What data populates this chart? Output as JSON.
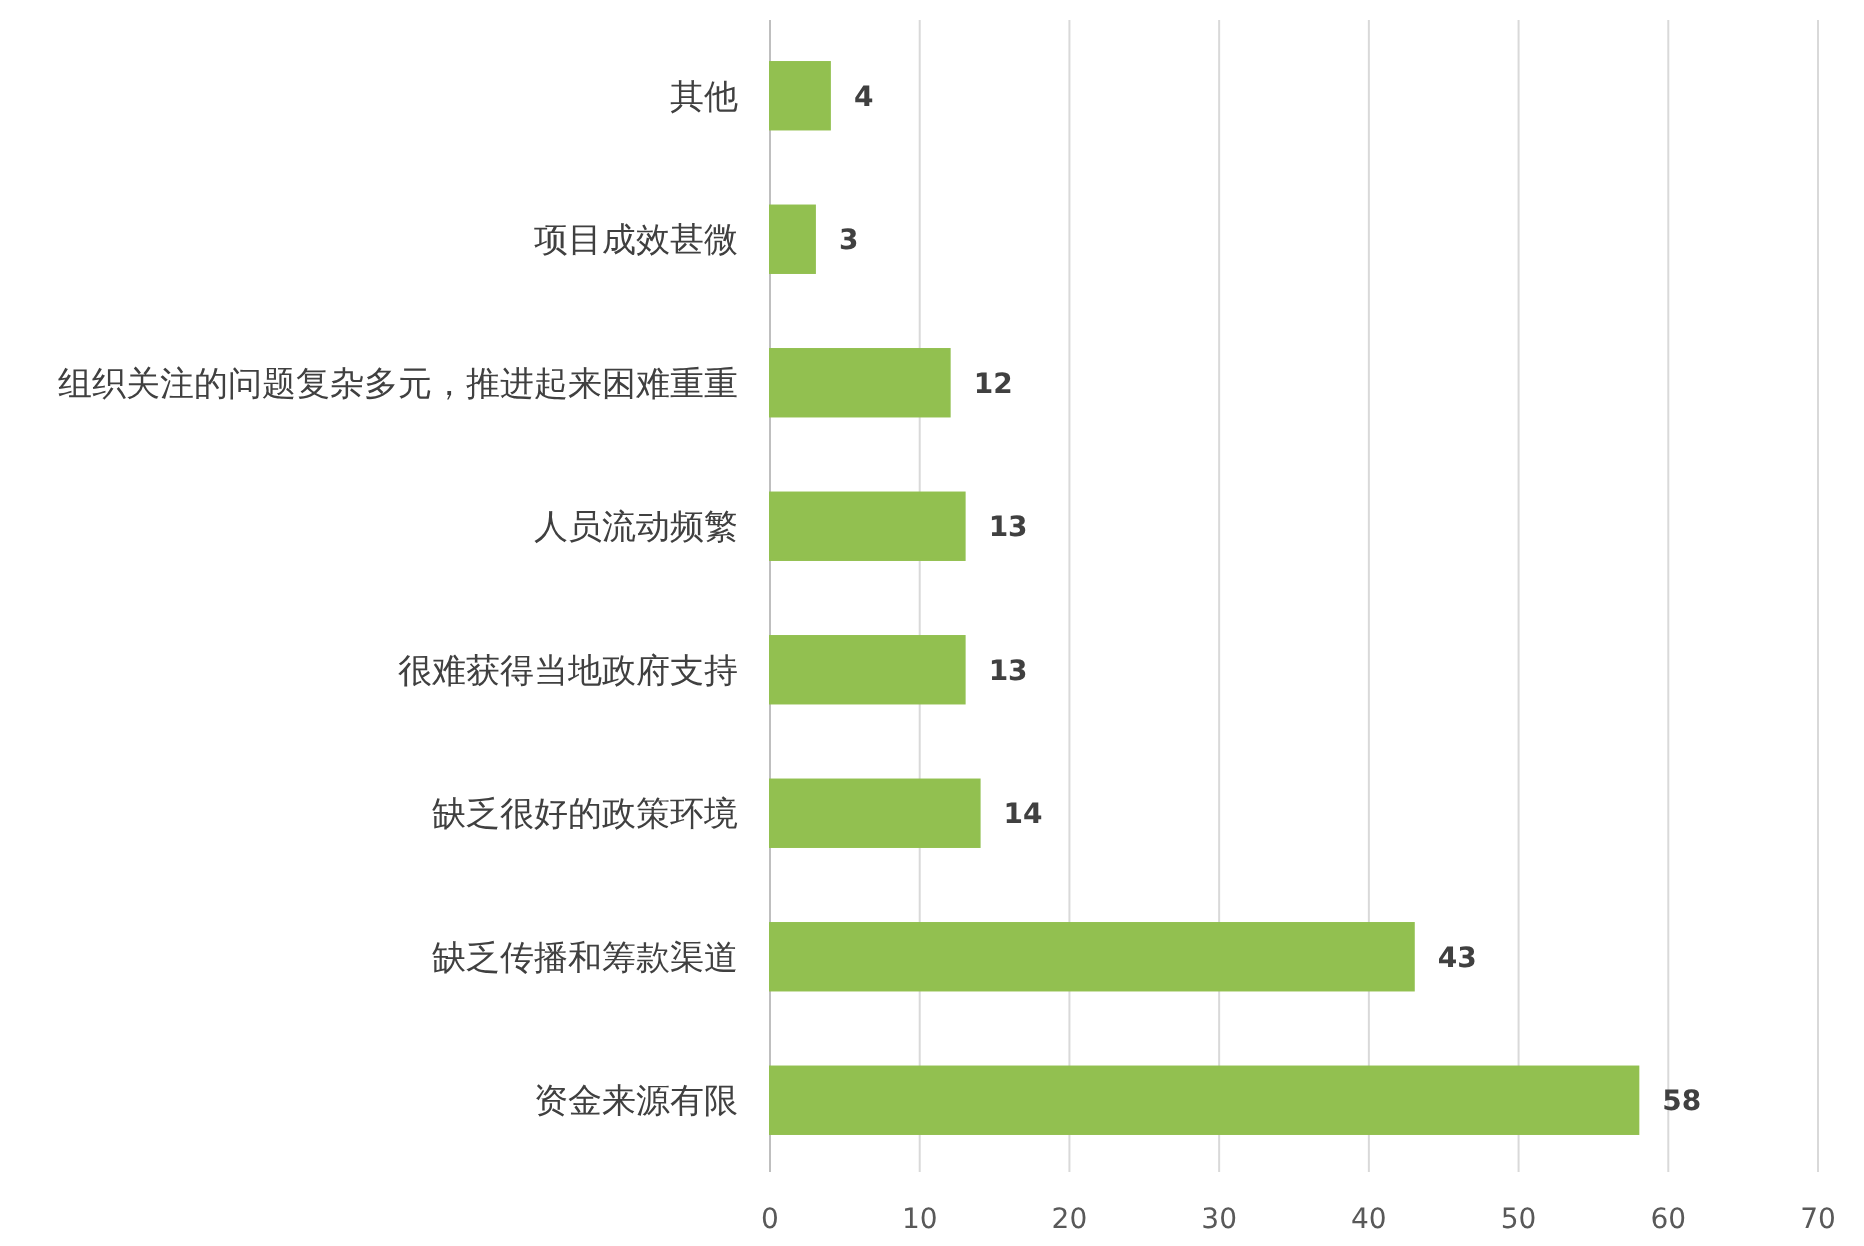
{
  "chart_data": {
    "type": "bar",
    "orientation": "horizontal",
    "categories": [
      "其他",
      "项目成效甚微",
      "组织关注的问题复杂多元，推进起来困难重重",
      "人员流动频繁",
      "很难获得当地政府支持",
      "缺乏很好的政策环境",
      "缺乏传播和筹款渠道",
      "资金来源有限"
    ],
    "values": [
      4,
      3,
      12,
      13,
      13,
      14,
      43,
      58
    ],
    "color": "#92c050",
    "xlim": [
      0,
      70
    ],
    "xticks": [
      0,
      10,
      20,
      30,
      40,
      50,
      60,
      70
    ],
    "grid": "x",
    "data_labels": true
  }
}
